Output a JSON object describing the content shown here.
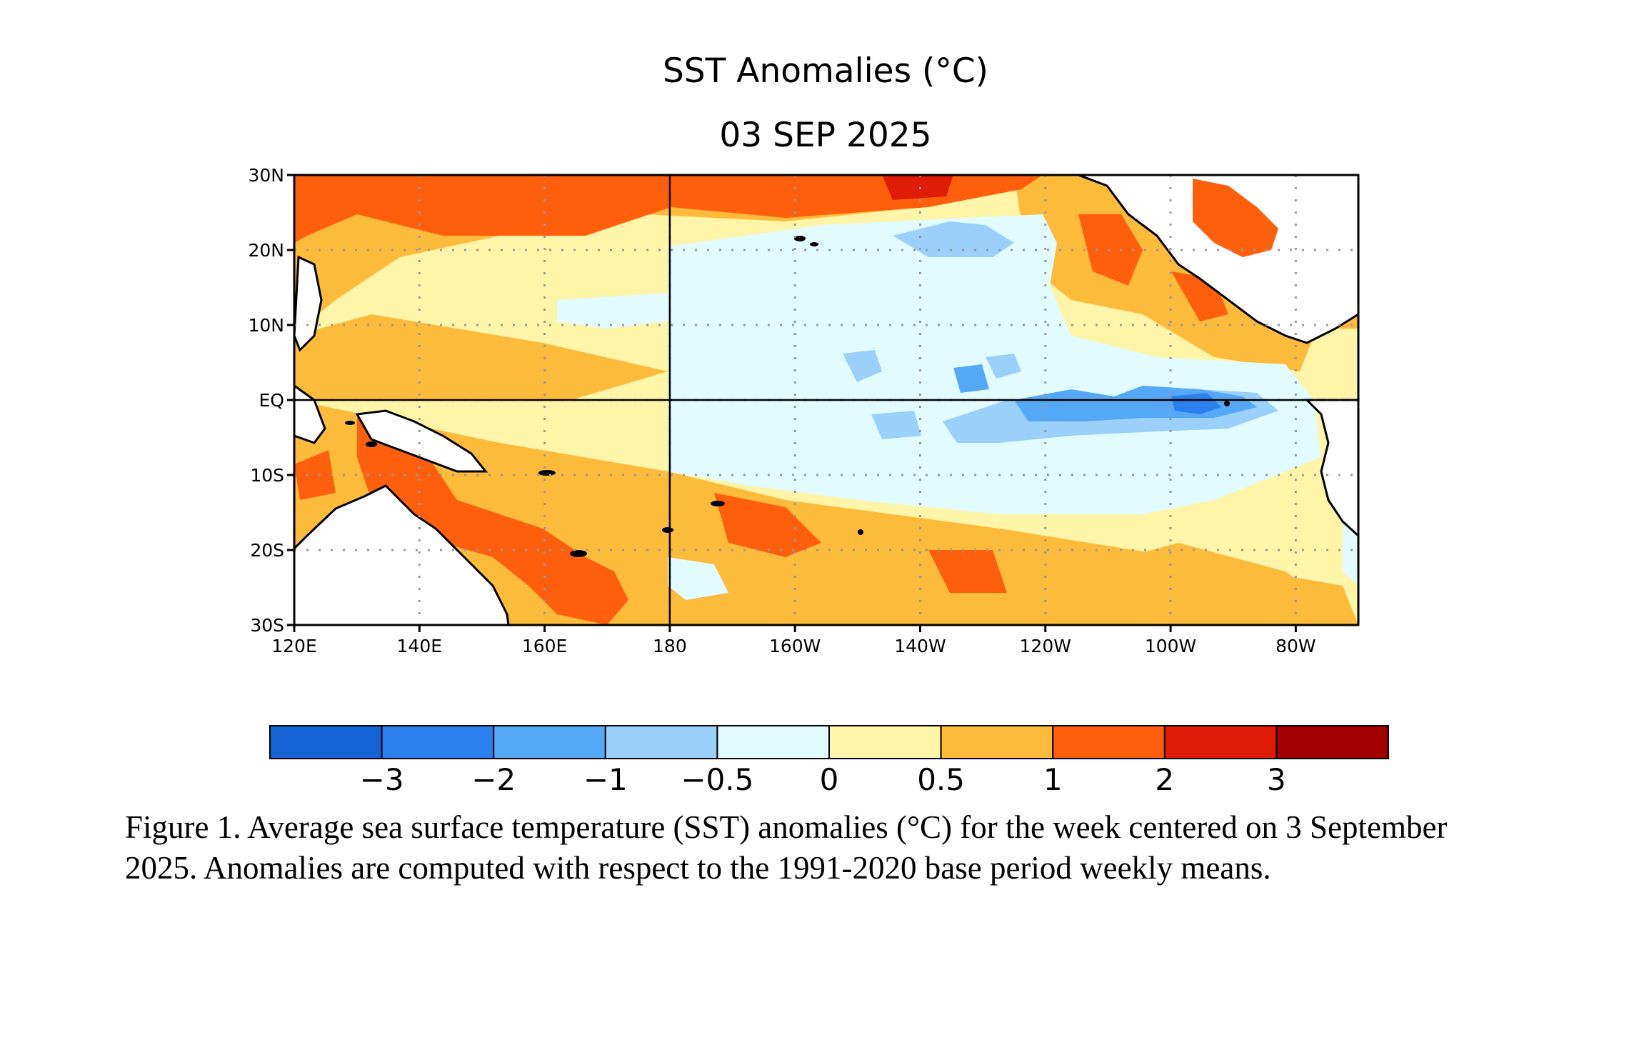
{
  "figure": {
    "title": "SST Anomalies (°C)",
    "date": "03 SEP 2025",
    "caption": "Figure 1. Average sea surface temperature (SST) anomalies (°C) for the week centered on 3 September 2025.  Anomalies are computed with respect to the 1991-2020 base period weekly means."
  },
  "map": {
    "lon_range_deg_east": [
      120,
      290
    ],
    "lat_range_deg": [
      -30,
      30
    ],
    "lat_tick_labels": [
      "30N",
      "20N",
      "10N",
      "EQ",
      "10S",
      "20S",
      "30S"
    ],
    "lon_tick_labels": [
      "120E",
      "140E",
      "160E",
      "180",
      "160W",
      "140W",
      "120W",
      "100W",
      "80W"
    ],
    "reference_lines": [
      "EQ",
      "180"
    ],
    "grid": "dotted",
    "land_color": "#ffffff",
    "coastline_color": "#000000"
  },
  "colorbar": {
    "colors": [
      "#1563d4",
      "#2b80ee",
      "#55a8f6",
      "#9ad0fa",
      "#e1fbff",
      "#fff5a8",
      "#fdbb3c",
      "#fd5f0d",
      "#de1c07",
      "#a00000"
    ],
    "tick_labels": [
      "−3",
      "−2",
      "−1",
      "−0.5",
      "0",
      "0.5",
      "1",
      "2",
      "3"
    ]
  }
}
